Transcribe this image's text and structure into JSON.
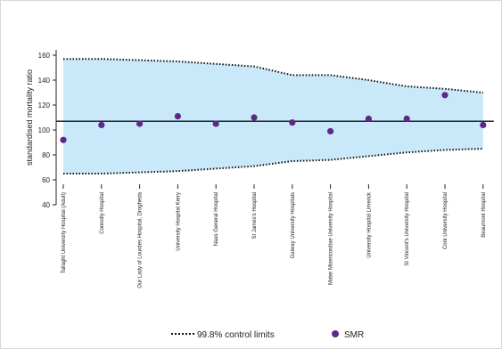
{
  "chart_data": {
    "type": "scatter",
    "title": "",
    "xlabel": "",
    "ylabel": "standardised mortality ratio",
    "ylim": [
      40,
      160
    ],
    "yticks": [
      40,
      60,
      80,
      100,
      120,
      140,
      160
    ],
    "grid": false,
    "legend_position": "bottom",
    "reference_line": 107,
    "categories": [
      "Tallaght University Hospital (Adult)",
      "Connolly Hospital",
      "Our Lady of Lourdes Hospital, Drogheda",
      "University Hospital Kerry",
      "Naas General Hospital",
      "St James's Hospital",
      "Galway University Hospitals",
      "Mater Misericordiae University Hospital",
      "University Hospital Limerick",
      "St Vincent's University Hospital",
      "Cork University Hospital",
      "Beaumont Hospital"
    ],
    "series": [
      {
        "name": "SMR",
        "values": [
          92,
          104,
          105,
          111,
          105,
          110,
          106,
          99,
          109,
          109,
          128,
          104
        ]
      },
      {
        "name": "99.8% control limits",
        "upper": [
          157,
          157,
          156,
          155,
          153,
          151,
          144,
          144,
          140,
          135,
          133,
          130
        ],
        "lower": [
          65,
          65,
          66,
          67,
          69,
          71,
          75,
          76,
          79,
          82,
          84,
          85
        ]
      }
    ],
    "colors": {
      "band": "#c9e9fb",
      "dot": "#5b2a86",
      "reference": "#111111",
      "limit": "#111111"
    }
  },
  "legend": {
    "limits_label": "99.8% control limits",
    "smr_label": "SMR"
  }
}
